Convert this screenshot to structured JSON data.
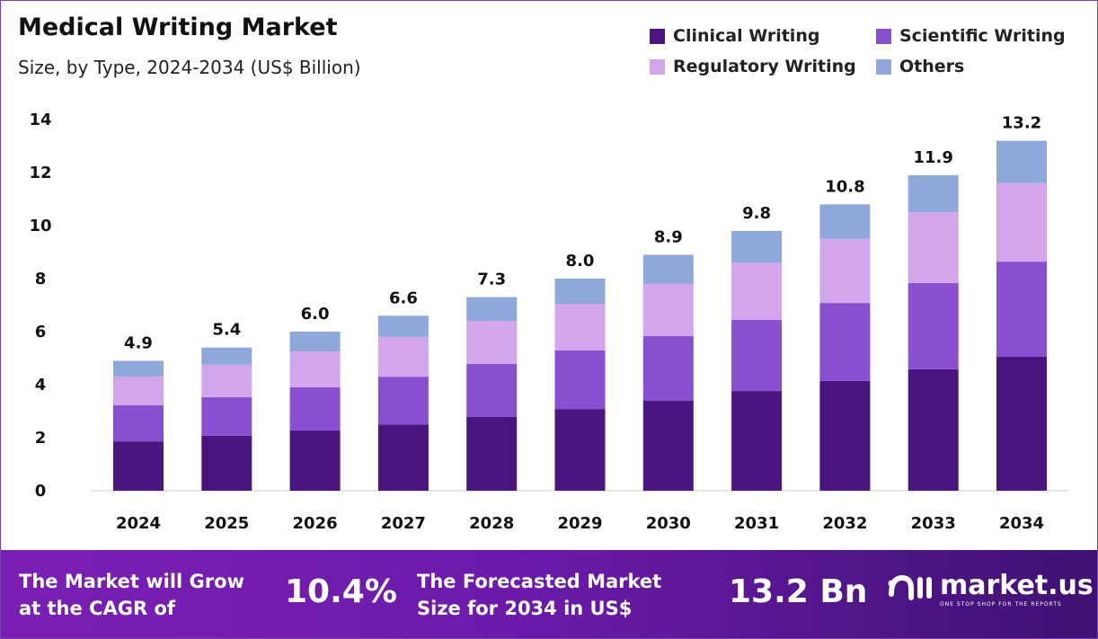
{
  "chart_data": {
    "type": "bar",
    "stacked": true,
    "title": "Medical Writing Market",
    "subtitle": "Size, by Type, 2024-2034 (US$ Billion)",
    "categories": [
      "2024",
      "2025",
      "2026",
      "2027",
      "2028",
      "2029",
      "2030",
      "2031",
      "2032",
      "2033",
      "2034"
    ],
    "series": [
      {
        "name": "Clinical Writing",
        "color": "#4b1580",
        "values": [
          1.86,
          2.07,
          2.27,
          2.5,
          2.78,
          3.08,
          3.39,
          3.76,
          4.14,
          4.58,
          5.05
        ]
      },
      {
        "name": "Scientific Writing",
        "color": "#8a4fd0",
        "values": [
          1.36,
          1.46,
          1.63,
          1.8,
          2.0,
          2.21,
          2.44,
          2.68,
          2.94,
          3.25,
          3.59
        ]
      },
      {
        "name": "Regulatory Writing",
        "color": "#d3a6ec",
        "values": [
          1.08,
          1.22,
          1.35,
          1.5,
          1.62,
          1.76,
          1.97,
          2.16,
          2.42,
          2.67,
          2.96
        ]
      },
      {
        "name": "Others",
        "color": "#8fa8dc",
        "values": [
          0.6,
          0.65,
          0.75,
          0.8,
          0.9,
          0.95,
          1.1,
          1.2,
          1.3,
          1.4,
          1.6
        ]
      }
    ],
    "totals": [
      "4.9",
      "5.4",
      "6.0",
      "6.6",
      "7.3",
      "8.0",
      "8.9",
      "9.8",
      "10.8",
      "11.9",
      "13.2"
    ],
    "ylim": [
      0,
      14
    ],
    "yticks": [
      "0",
      "2",
      "4",
      "6",
      "8",
      "10",
      "12",
      "14"
    ],
    "grid": false,
    "legend": "top-right"
  },
  "banner": {
    "cagr_label_1": "The Market will Grow",
    "cagr_label_2": "at the CAGR of",
    "cagr_value": "10.4%",
    "forecast_label_1": "The Forecasted Market",
    "forecast_label_2": "Size for 2034 in US$",
    "forecast_value": "13.2 Bn",
    "logo": "market.us",
    "tagline": "ONE STOP SHOP FOR THE REPORTS"
  }
}
